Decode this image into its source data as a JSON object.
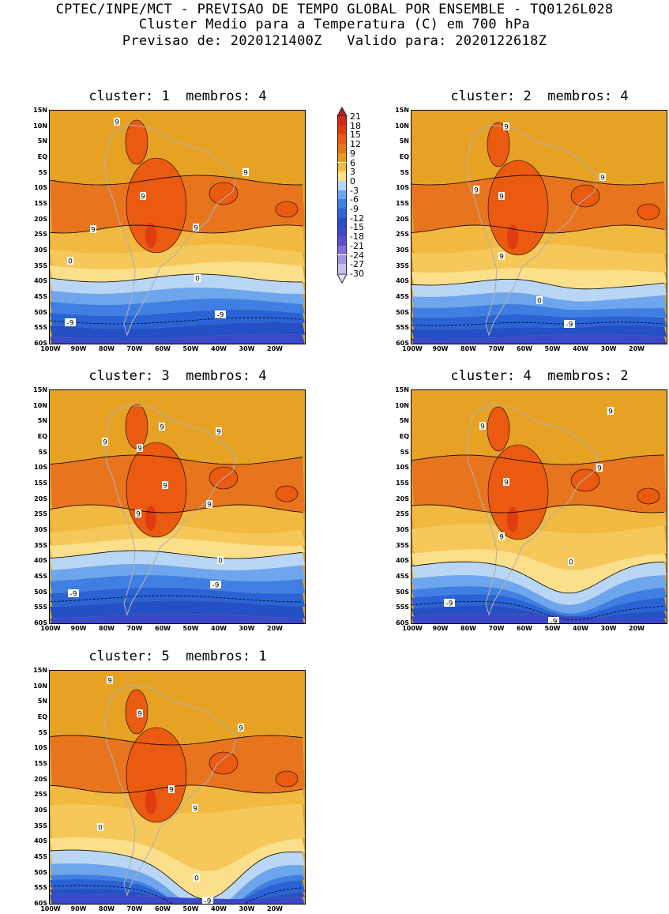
{
  "header": {
    "line1": "CPTEC/INPE/MCT - PREVISAO DE TEMPO GLOBAL POR ENSEMBLE - TQ0126L028",
    "line2": "Cluster Medio para a Temperatura (C) em 700 hPa",
    "line3": "Previsao de: 2020121400Z   Valido para: 2020122618Z"
  },
  "panels": [
    {
      "title": "cluster: 1  membros: 4",
      "labels": [
        "9",
        "9",
        "9",
        "9",
        "9",
        "0",
        "0",
        "-9",
        "-9"
      ]
    },
    {
      "title": "cluster: 2  membros: 4",
      "labels": [
        "9",
        "9",
        "9",
        "9",
        "9",
        "0",
        "-9"
      ]
    },
    {
      "title": "cluster: 3  membros: 4",
      "labels": [
        "9",
        "9",
        "9",
        "9",
        "9",
        "9",
        "9",
        "0",
        "-9",
        "-9"
      ]
    },
    {
      "title": "cluster: 4  membros: 2",
      "labels": [
        "9",
        "9",
        "9",
        "9",
        "9",
        "0",
        "-9",
        "-9"
      ]
    },
    {
      "title": "cluster: 5  membros: 1",
      "labels": [
        "9",
        "9",
        "9",
        "9",
        "9",
        "0",
        "0",
        "-9"
      ]
    }
  ],
  "lat_ticks": [
    "15N",
    "10N",
    "5N",
    "EQ",
    "5S",
    "10S",
    "15S",
    "20S",
    "25S",
    "30S",
    "35S",
    "40S",
    "45S",
    "50S",
    "55S",
    "60S"
  ],
  "lon_ticks": [
    "100W",
    "90W",
    "80W",
    "70W",
    "60W",
    "50W",
    "40W",
    "30W",
    "20W"
  ],
  "colorbar": {
    "labels": [
      "21",
      "18",
      "15",
      "12",
      "9",
      "6",
      "3",
      "0",
      "-3",
      "-6",
      "-9",
      "-12",
      "-15",
      "-18",
      "-21",
      "-24",
      "-27",
      "-30"
    ],
    "colors": [
      "#b3201e",
      "#cf2a16",
      "#e03c10",
      "#ea5a10",
      "#e8751e",
      "#e99a20",
      "#f2b940",
      "#fbdf8a",
      "#b9d6f6",
      "#6da6ee",
      "#3f7fe3",
      "#2a63d6",
      "#2450c6",
      "#3a49c9",
      "#5b4fd0",
      "#8171db",
      "#a596e6",
      "#c7bff0",
      "#e6e2f7"
    ]
  }
}
